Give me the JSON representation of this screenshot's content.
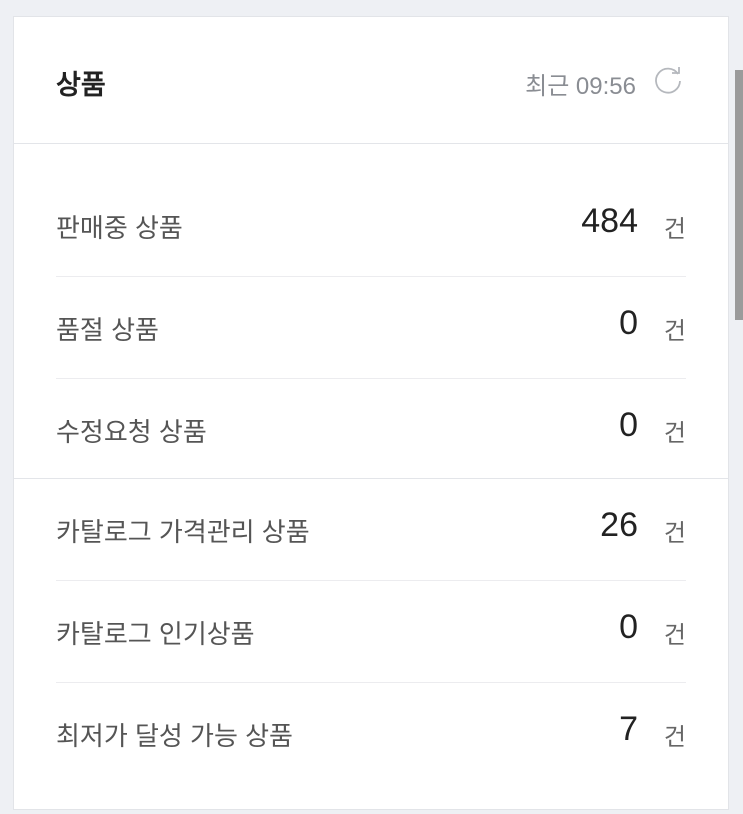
{
  "header": {
    "title": "상품",
    "updated_label": "최근 09:56",
    "refresh_icon": "refresh-icon"
  },
  "groups": [
    [
      {
        "label": "판매중 상품",
        "value": "484",
        "unit": "건"
      },
      {
        "label": "품절 상품",
        "value": "0",
        "unit": "건"
      },
      {
        "label": "수정요청 상품",
        "value": "0",
        "unit": "건"
      }
    ],
    [
      {
        "label": "카탈로그 가격관리 상품",
        "value": "26",
        "unit": "건"
      },
      {
        "label": "카탈로그 인기상품",
        "value": "0",
        "unit": "건"
      },
      {
        "label": "최저가 달성 가능 상품",
        "value": "7",
        "unit": "건"
      }
    ]
  ]
}
